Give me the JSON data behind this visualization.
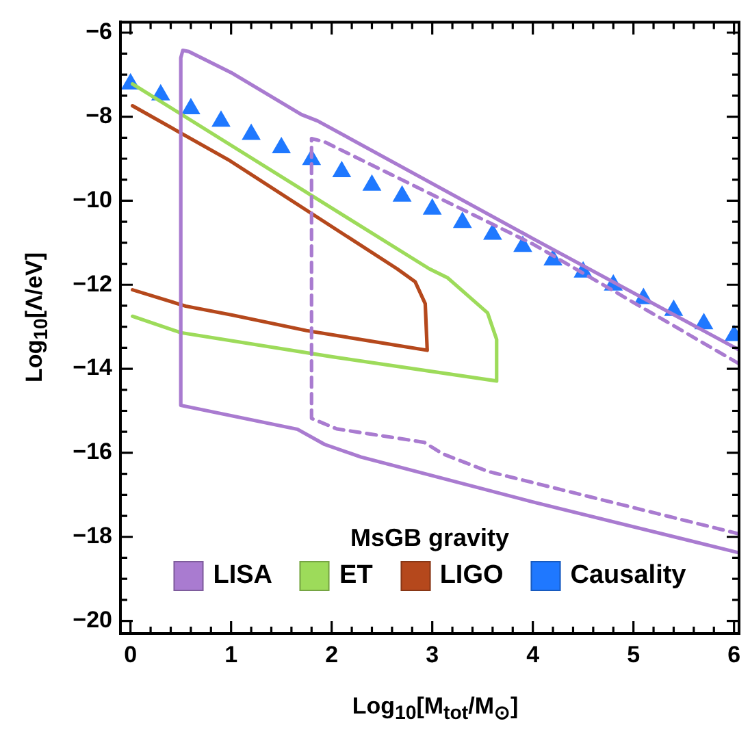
{
  "chart_data": {
    "type": "line",
    "xlabel": "Log$_{10}$[M$_{tot}$/M$_{⊙}$]",
    "ylabel": "Log$_{10}$[Λ/eV]",
    "legend_title": "MsGB gravity",
    "legend": "bottom",
    "grid": false,
    "xlim": [
      -0.1,
      6.05
    ],
    "ylim": [
      -20.3,
      -5.75
    ],
    "xticks": [
      0,
      {
        "value": 0.2,
        "label": null
      },
      {
        "value": 0.4,
        "label": null
      },
      {
        "value": 0.6,
        "label": null
      },
      {
        "value": 0.8,
        "label": null
      },
      1,
      {
        "value": 1.2,
        "label": null
      },
      {
        "value": 1.4,
        "label": null
      },
      {
        "value": 1.6,
        "label": null
      },
      {
        "value": 1.8,
        "label": null
      },
      2,
      {
        "value": 2.2,
        "label": null
      },
      {
        "value": 2.4,
        "label": null
      },
      {
        "value": 2.6,
        "label": null
      },
      {
        "value": 2.8,
        "label": null
      },
      3,
      {
        "value": 3.2,
        "label": null
      },
      {
        "value": 3.4,
        "label": null
      },
      {
        "value": 3.6,
        "label": null
      },
      {
        "value": 3.8,
        "label": null
      },
      4,
      {
        "value": 4.2,
        "label": null
      },
      {
        "value": 4.4,
        "label": null
      },
      {
        "value": 4.6,
        "label": null
      },
      {
        "value": 4.8,
        "label": null
      },
      5,
      {
        "value": 5.2,
        "label": null
      },
      {
        "value": 5.4,
        "label": null
      },
      {
        "value": 5.6,
        "label": null
      },
      {
        "value": 5.8,
        "label": null
      },
      6
    ],
    "yticks": [
      {
        "value": -20,
        "label": "−20"
      },
      {
        "value": -19.5,
        "label": null
      },
      {
        "value": -19,
        "label": null
      },
      {
        "value": -18.5,
        "label": null
      },
      {
        "value": -18,
        "label": "−18"
      },
      {
        "value": -17.5,
        "label": null
      },
      {
        "value": -17,
        "label": null
      },
      {
        "value": -16.5,
        "label": null
      },
      {
        "value": -16,
        "label": "−16"
      },
      {
        "value": -15.5,
        "label": null
      },
      {
        "value": -15,
        "label": null
      },
      {
        "value": -14.5,
        "label": null
      },
      {
        "value": -14,
        "label": "−14"
      },
      {
        "value": -13.5,
        "label": null
      },
      {
        "value": -13,
        "label": null
      },
      {
        "value": -12.5,
        "label": null
      },
      {
        "value": -12,
        "label": "−12"
      },
      {
        "value": -11.5,
        "label": null
      },
      {
        "value": -11,
        "label": null
      },
      {
        "value": -10.5,
        "label": null
      },
      {
        "value": -10,
        "label": "−10"
      },
      {
        "value": -9.5,
        "label": null
      },
      {
        "value": -9,
        "label": null
      },
      {
        "value": -8.5,
        "label": null
      },
      {
        "value": -8,
        "label": "−8"
      },
      {
        "value": -7.5,
        "label": null
      },
      {
        "value": -7,
        "label": null
      },
      {
        "value": -6.5,
        "label": null
      },
      {
        "value": -6,
        "label": "−6"
      }
    ],
    "series": [
      {
        "name": "LISA",
        "type": "line",
        "color": "#a97bd0",
        "line_style": "solid",
        "x": [
          6.05,
          4.0,
          2.29,
          1.93,
          1.66,
          0.5,
          0.5,
          0.52,
          0.58,
          1.0,
          1.7,
          1.86,
          4.0,
          6.05
        ],
        "values": [
          -18.38,
          -17.17,
          -16.1,
          -15.8,
          -15.44,
          -14.87,
          -6.6,
          -6.42,
          -6.45,
          -6.95,
          -7.95,
          -8.1,
          -10.9,
          -13.55
        ]
      },
      {
        "type": "line",
        "color": "#a97bd0",
        "line_style": "dashed",
        "x": [
          6.05,
          3.55,
          3.1,
          2.92,
          2.05,
          1.8,
          1.8,
          1.93,
          4.0,
          6.05
        ],
        "values": [
          -17.93,
          -16.44,
          -16.02,
          -15.75,
          -15.43,
          -15.18,
          -8.52,
          -8.6,
          -11.03,
          -13.88
        ]
      },
      {
        "name": "ET",
        "type": "line",
        "color": "#9ddb5a",
        "line_style": "solid",
        "x": [
          0.02,
          2.97,
          3.15,
          3.55,
          3.64,
          3.64,
          2.02,
          0.5,
          0.02
        ],
        "values": [
          -7.22,
          -11.62,
          -11.83,
          -12.67,
          -13.3,
          -14.29,
          -13.72,
          -13.14,
          -12.75
        ]
      },
      {
        "name": "LIGO",
        "type": "line",
        "color": "#b5481c",
        "line_style": "solid",
        "x": [
          0.02,
          0.99,
          2.65,
          2.83,
          2.93,
          2.95,
          1.75,
          1.01,
          0.55,
          0.02
        ],
        "values": [
          -7.74,
          -9.05,
          -11.62,
          -11.93,
          -12.45,
          -13.56,
          -13.09,
          -12.72,
          -12.51,
          -12.12
        ]
      },
      {
        "name": "Causality",
        "type": "scatter",
        "marker": "triangle",
        "color": "#1f78ff",
        "x": [
          0,
          0.3,
          0.6,
          0.9,
          1.2,
          1.5,
          1.8,
          2.1,
          2.4,
          2.7,
          3.0,
          3.3,
          3.6,
          3.9,
          4.2,
          4.5,
          4.8,
          5.1,
          5.4,
          5.7,
          6.0
        ],
        "values": [
          -7.22,
          -7.48,
          -7.81,
          -8.11,
          -8.42,
          -8.74,
          -9.02,
          -9.31,
          -9.63,
          -9.89,
          -10.2,
          -10.52,
          -10.8,
          -11.09,
          -11.41,
          -11.7,
          -12.01,
          -12.33,
          -12.61,
          -12.93,
          -13.21
        ]
      }
    ]
  }
}
